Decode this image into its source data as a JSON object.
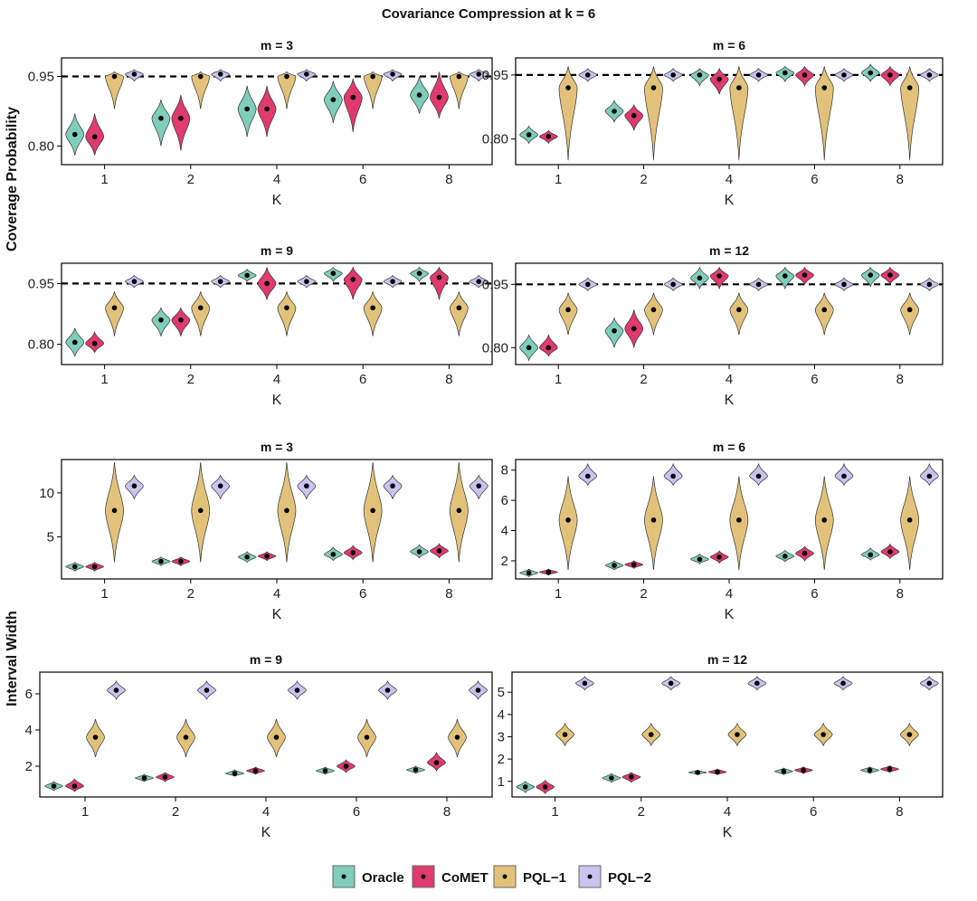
{
  "title": "Covariance Compression at k = 6",
  "y_label_top": "Coverage Probability",
  "y_label_bottom": "Interval Width",
  "legend": [
    {
      "name": "Oracle",
      "color": "#7fcdbb"
    },
    {
      "name": "CoMET",
      "color": "#e03a6e"
    },
    {
      "name": "PQL−1",
      "color": "#e2c27a"
    },
    {
      "name": "PQL−2",
      "color": "#c9c3ee"
    }
  ],
  "chart_data": [
    {
      "type": "violin",
      "title": "m = 3",
      "xlabel": "K",
      "ylabel": "Coverage Probability",
      "categories": [
        "1",
        "2",
        "4",
        "6",
        "8"
      ],
      "ylim": [
        0.76,
        0.99
      ],
      "yticks": [
        0.8,
        0.95
      ],
      "ytick_labels": [
        "0.80",
        "0.95"
      ],
      "reference_line": 0.95,
      "series": [
        {
          "name": "Oracle",
          "values": [
            0.825,
            0.86,
            0.88,
            0.9,
            0.91
          ],
          "min": [
            0.78,
            0.8,
            0.82,
            0.85,
            0.87
          ],
          "max": [
            0.87,
            0.9,
            0.93,
            0.94,
            0.95
          ]
        },
        {
          "name": "CoMET",
          "values": [
            0.82,
            0.86,
            0.88,
            0.905,
            0.905
          ],
          "min": [
            0.78,
            0.79,
            0.82,
            0.83,
            0.86
          ],
          "max": [
            0.87,
            0.91,
            0.93,
            0.945,
            0.96
          ]
        },
        {
          "name": "PQL−1",
          "values": [
            0.95,
            0.95,
            0.95,
            0.95,
            0.95
          ],
          "min": [
            0.88,
            0.88,
            0.88,
            0.88,
            0.88
          ],
          "max": [
            0.96,
            0.96,
            0.96,
            0.96,
            0.96
          ]
        },
        {
          "name": "PQL−2",
          "values": [
            0.955,
            0.955,
            0.955,
            0.955,
            0.955
          ],
          "min": [
            0.94,
            0.94,
            0.94,
            0.94,
            0.94
          ],
          "max": [
            0.965,
            0.965,
            0.965,
            0.965,
            0.965
          ]
        }
      ]
    },
    {
      "type": "violin",
      "title": "m = 6",
      "xlabel": "K",
      "ylabel": "Coverage Probability",
      "categories": [
        "1",
        "2",
        "4",
        "6",
        "8"
      ],
      "ylim": [
        0.74,
        0.99
      ],
      "yticks": [
        0.8,
        0.95
      ],
      "ytick_labels": [
        "0.80",
        "0.95"
      ],
      "reference_line": 0.95,
      "series": [
        {
          "name": "Oracle",
          "values": [
            0.81,
            0.865,
            0.95,
            0.955,
            0.955
          ],
          "min": [
            0.79,
            0.84,
            0.925,
            0.935,
            0.935
          ],
          "max": [
            0.83,
            0.89,
            0.965,
            0.97,
            0.975
          ]
        },
        {
          "name": "CoMET",
          "values": [
            0.806,
            0.855,
            0.94,
            0.95,
            0.95
          ],
          "min": [
            0.79,
            0.82,
            0.905,
            0.925,
            0.925
          ],
          "max": [
            0.82,
            0.88,
            0.965,
            0.97,
            0.97
          ]
        },
        {
          "name": "PQL−1",
          "values": [
            0.92,
            0.92,
            0.92,
            0.92,
            0.92
          ],
          "min": [
            0.75,
            0.75,
            0.75,
            0.75,
            0.75
          ],
          "max": [
            0.97,
            0.97,
            0.97,
            0.97,
            0.97
          ]
        },
        {
          "name": "PQL−2",
          "values": [
            0.95,
            0.95,
            0.95,
            0.95,
            0.95
          ],
          "min": [
            0.935,
            0.935,
            0.935,
            0.935,
            0.935
          ],
          "max": [
            0.965,
            0.965,
            0.965,
            0.965,
            0.965
          ]
        }
      ]
    },
    {
      "type": "violin",
      "title": "m = 9",
      "xlabel": "K",
      "ylabel": "Coverage Probability",
      "categories": [
        "1",
        "2",
        "4",
        "6",
        "8"
      ],
      "ylim": [
        0.75,
        1.0
      ],
      "yticks": [
        0.8,
        0.95
      ],
      "ytick_labels": [
        "0.80",
        "0.95"
      ],
      "reference_line": 0.95,
      "series": [
        {
          "name": "Oracle",
          "values": [
            0.805,
            0.86,
            0.97,
            0.975,
            0.975
          ],
          "min": [
            0.77,
            0.82,
            0.955,
            0.955,
            0.955
          ],
          "max": [
            0.84,
            0.89,
            0.985,
            0.99,
            0.99
          ]
        },
        {
          "name": "CoMET",
          "values": [
            0.802,
            0.86,
            0.95,
            0.96,
            0.965
          ],
          "min": [
            0.78,
            0.82,
            0.91,
            0.91,
            0.91
          ],
          "max": [
            0.83,
            0.89,
            0.99,
            0.99,
            0.99
          ]
        },
        {
          "name": "PQL−1",
          "values": [
            0.89,
            0.89,
            0.89,
            0.89,
            0.89
          ],
          "min": [
            0.82,
            0.82,
            0.82,
            0.82,
            0.82
          ],
          "max": [
            0.93,
            0.93,
            0.93,
            0.93,
            0.93
          ]
        },
        {
          "name": "PQL−2",
          "values": [
            0.955,
            0.955,
            0.955,
            0.955,
            0.955
          ],
          "min": [
            0.94,
            0.94,
            0.94,
            0.94,
            0.94
          ],
          "max": [
            0.97,
            0.97,
            0.97,
            0.97,
            0.97
          ]
        }
      ]
    },
    {
      "type": "violin",
      "title": "m = 12",
      "xlabel": "K",
      "ylabel": "Coverage Probability",
      "categories": [
        "1",
        "2",
        "4",
        "6",
        "8"
      ],
      "ylim": [
        0.76,
        1.0
      ],
      "yticks": [
        0.8,
        0.95
      ],
      "ytick_labels": [
        "0.80",
        "0.95"
      ],
      "reference_line": 0.95,
      "series": [
        {
          "name": "Oracle",
          "values": [
            0.8,
            0.84,
            0.965,
            0.97,
            0.972
          ],
          "min": [
            0.77,
            0.8,
            0.94,
            0.94,
            0.945
          ],
          "max": [
            0.83,
            0.87,
            0.99,
            0.99,
            0.99
          ]
        },
        {
          "name": "CoMET",
          "values": [
            0.8,
            0.845,
            0.97,
            0.972,
            0.972
          ],
          "min": [
            0.78,
            0.8,
            0.94,
            0.95,
            0.95
          ],
          "max": [
            0.83,
            0.89,
            0.99,
            0.99,
            0.99
          ]
        },
        {
          "name": "PQL−1",
          "values": [
            0.89,
            0.89,
            0.89,
            0.89,
            0.89
          ],
          "min": [
            0.83,
            0.83,
            0.83,
            0.83,
            0.83
          ],
          "max": [
            0.93,
            0.93,
            0.93,
            0.93,
            0.93
          ]
        },
        {
          "name": "PQL−2",
          "values": [
            0.95,
            0.95,
            0.95,
            0.95,
            0.95
          ],
          "min": [
            0.935,
            0.935,
            0.935,
            0.935,
            0.935
          ],
          "max": [
            0.965,
            0.965,
            0.965,
            0.965,
            0.965
          ]
        }
      ]
    },
    {
      "type": "violin",
      "title": "m = 3",
      "xlabel": "K",
      "ylabel": "Interval Width",
      "categories": [
        "1",
        "2",
        "4",
        "6",
        "8"
      ],
      "ylim": [
        0.2,
        13.8
      ],
      "yticks": [
        5,
        10
      ],
      "ytick_labels": [
        "5",
        "10"
      ],
      "series": [
        {
          "name": "Oracle",
          "values": [
            1.6,
            2.2,
            2.7,
            3.0,
            3.3
          ],
          "min": [
            1.1,
            1.7,
            2.1,
            2.3,
            2.6
          ],
          "max": [
            2.1,
            2.7,
            3.3,
            3.8,
            4.1
          ]
        },
        {
          "name": "CoMET",
          "values": [
            1.6,
            2.2,
            2.8,
            3.2,
            3.4
          ],
          "min": [
            1.1,
            1.7,
            2.3,
            2.4,
            2.6
          ],
          "max": [
            2.1,
            2.7,
            3.3,
            4.0,
            4.2
          ]
        },
        {
          "name": "PQL−1",
          "values": [
            8.0,
            8.0,
            8.0,
            8.0,
            8.0
          ],
          "min": [
            2.1,
            2.1,
            2.1,
            2.1,
            2.1
          ],
          "max": [
            13.5,
            13.5,
            13.5,
            13.5,
            13.5
          ]
        },
        {
          "name": "PQL−2",
          "values": [
            10.8,
            10.8,
            10.8,
            10.8,
            10.8
          ],
          "min": [
            9.3,
            9.3,
            9.3,
            9.3,
            9.3
          ],
          "max": [
            12.0,
            12.0,
            12.0,
            12.0,
            12.0
          ]
        }
      ]
    },
    {
      "type": "violin",
      "title": "m = 6",
      "xlabel": "K",
      "ylabel": "Interval Width",
      "categories": [
        "1",
        "2",
        "4",
        "6",
        "8"
      ],
      "ylim": [
        0.8,
        8.7
      ],
      "yticks": [
        2,
        4,
        6,
        8
      ],
      "ytick_labels": [
        "2",
        "4",
        "6",
        "8"
      ],
      "series": [
        {
          "name": "Oracle",
          "values": [
            1.2,
            1.7,
            2.1,
            2.3,
            2.4
          ],
          "min": [
            0.95,
            1.4,
            1.8,
            1.95,
            2.05
          ],
          "max": [
            1.45,
            2.0,
            2.45,
            2.7,
            2.85
          ]
        },
        {
          "name": "CoMET",
          "values": [
            1.25,
            1.75,
            2.25,
            2.5,
            2.6
          ],
          "min": [
            1.05,
            1.5,
            1.85,
            2.0,
            2.15
          ],
          "max": [
            1.45,
            2.0,
            2.65,
            2.95,
            3.1
          ]
        },
        {
          "name": "PQL−1",
          "values": [
            4.7,
            4.7,
            4.7,
            4.7,
            4.7
          ],
          "min": [
            1.4,
            1.4,
            1.4,
            1.4,
            1.4
          ],
          "max": [
            7.6,
            7.6,
            7.6,
            7.6,
            7.6
          ]
        },
        {
          "name": "PQL−2",
          "values": [
            7.6,
            7.6,
            7.6,
            7.6,
            7.6
          ],
          "min": [
            7.0,
            7.0,
            7.0,
            7.0,
            7.0
          ],
          "max": [
            8.4,
            8.4,
            8.4,
            8.4,
            8.4
          ]
        }
      ]
    },
    {
      "type": "violin",
      "title": "m = 9",
      "xlabel": "K",
      "ylabel": "Interval Width",
      "categories": [
        "1",
        "2",
        "4",
        "6",
        "8"
      ],
      "ylim": [
        0.3,
        7.2
      ],
      "yticks": [
        2,
        4,
        6
      ],
      "ytick_labels": [
        "2",
        "4",
        "6"
      ],
      "series": [
        {
          "name": "Oracle",
          "values": [
            0.9,
            1.35,
            1.6,
            1.75,
            1.8
          ],
          "min": [
            0.65,
            1.15,
            1.45,
            1.55,
            1.6
          ],
          "max": [
            1.15,
            1.55,
            1.8,
            1.95,
            2.0
          ]
        },
        {
          "name": "CoMET",
          "values": [
            0.9,
            1.4,
            1.75,
            2.0,
            2.2
          ],
          "min": [
            0.6,
            1.15,
            1.55,
            1.65,
            1.75
          ],
          "max": [
            1.3,
            1.65,
            1.95,
            2.35,
            2.75
          ]
        },
        {
          "name": "PQL−1",
          "values": [
            3.6,
            3.6,
            3.6,
            3.6,
            3.6
          ],
          "min": [
            2.5,
            2.5,
            2.5,
            2.5,
            2.5
          ],
          "max": [
            4.6,
            4.6,
            4.6,
            4.6,
            4.6
          ]
        },
        {
          "name": "PQL−2",
          "values": [
            6.2,
            6.2,
            6.2,
            6.2,
            6.2
          ],
          "min": [
            5.7,
            5.7,
            5.7,
            5.7,
            5.7
          ],
          "max": [
            6.7,
            6.7,
            6.7,
            6.7,
            6.7
          ]
        }
      ]
    },
    {
      "type": "violin",
      "title": "m = 12",
      "xlabel": "K",
      "ylabel": "Interval Width",
      "categories": [
        "1",
        "2",
        "4",
        "6",
        "8"
      ],
      "ylim": [
        0.3,
        5.9
      ],
      "yticks": [
        1,
        2,
        3,
        4,
        5
      ],
      "ytick_labels": [
        "1",
        "2",
        "3",
        "4",
        "5"
      ],
      "series": [
        {
          "name": "Oracle",
          "values": [
            0.75,
            1.15,
            1.4,
            1.45,
            1.5
          ],
          "min": [
            0.5,
            0.95,
            1.3,
            1.3,
            1.35
          ],
          "max": [
            1.0,
            1.35,
            1.5,
            1.6,
            1.65
          ]
        },
        {
          "name": "CoMET",
          "values": [
            0.75,
            1.2,
            1.42,
            1.5,
            1.55
          ],
          "min": [
            0.45,
            0.95,
            1.3,
            1.35,
            1.4
          ],
          "max": [
            1.05,
            1.4,
            1.55,
            1.65,
            1.7
          ]
        },
        {
          "name": "PQL−1",
          "values": [
            3.1,
            3.1,
            3.1,
            3.1,
            3.1
          ],
          "min": [
            2.6,
            2.6,
            2.6,
            2.6,
            2.6
          ],
          "max": [
            3.6,
            3.6,
            3.6,
            3.6,
            3.6
          ]
        },
        {
          "name": "PQL−2",
          "values": [
            5.4,
            5.4,
            5.4,
            5.4,
            5.4
          ],
          "min": [
            5.1,
            5.1,
            5.1,
            5.1,
            5.1
          ],
          "max": [
            5.7,
            5.7,
            5.7,
            5.7,
            5.7
          ]
        }
      ]
    }
  ]
}
